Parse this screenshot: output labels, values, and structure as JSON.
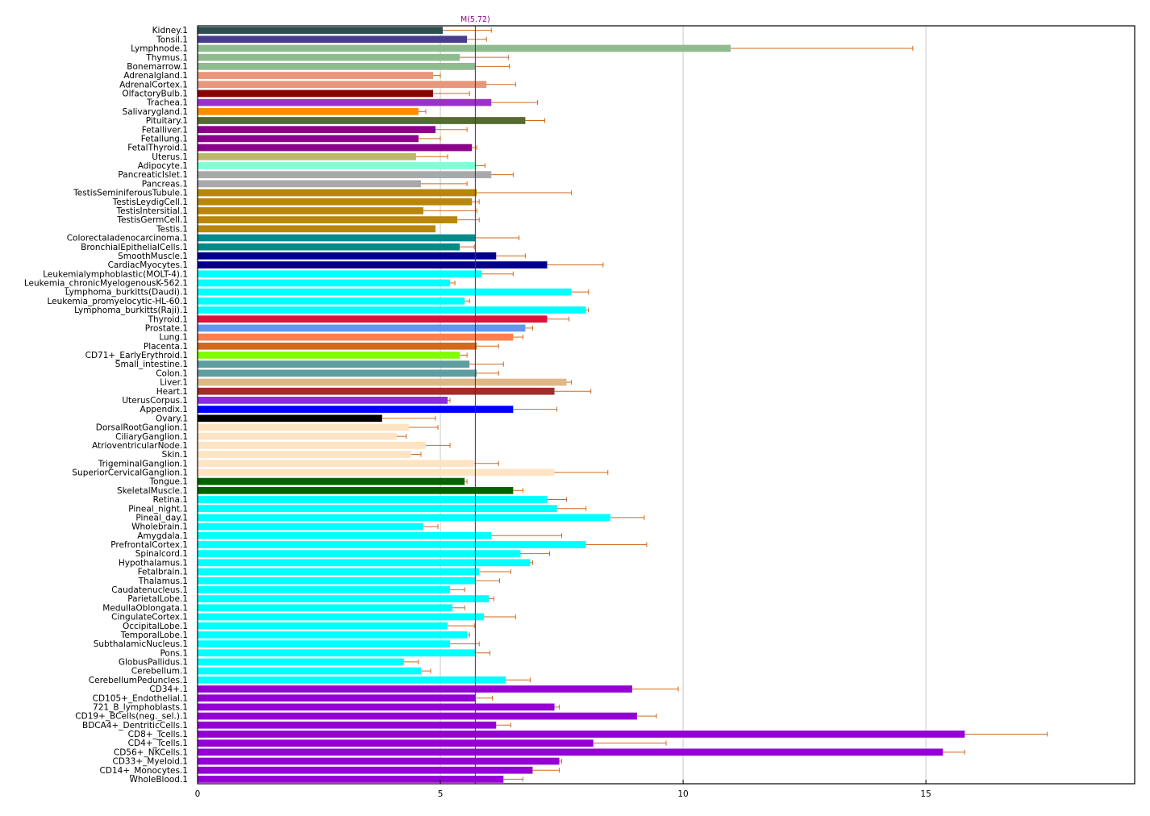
{
  "chart_data": {
    "type": "bar",
    "orientation": "horizontal",
    "title": "",
    "xlabel": "",
    "ylabel": "",
    "xlim": [
      0,
      19.3
    ],
    "xticks": [
      0,
      5,
      10,
      15
    ],
    "grid": "vertical",
    "marker": {
      "value": 5.72,
      "label": "M(5.72)",
      "color": "#8b008b"
    },
    "error_bar_color": "#d2691e",
    "categories": [
      "Kidney.1",
      "Tonsil.1",
      "Lymphnode.1",
      "Thymus.1",
      "Bonemarrow.1",
      "Adrenalgland.1",
      "AdrenalCortex.1",
      "OlfactoryBulb.1",
      "Trachea.1",
      "Salivarygland.1",
      "Pituitary.1",
      "Fetalliver.1",
      "Fetallung.1",
      "FetalThyroid.1",
      "Uterus.1",
      "Adipocyte.1",
      "PancreaticIslet.1",
      "Pancreas.1",
      "TestisSeminiferousTubule.1",
      "TestisLeydigCell.1",
      "TestisIntersitial.1",
      "TestisGermCell.1",
      "Testis.1",
      "Colorectaladenocarcinoma.1",
      "BronchialEpithelialCells.1",
      "SmoothMuscle.1",
      "CardiacMyocytes.1",
      "Leukemialymphoblastic(MOLT-4).1",
      "Leukemia_chronicMyelogenousK-562.1",
      "Lymphoma_burkitts(Daudi).1",
      "Leukemia_promyelocytic-HL-60.1",
      "Lymphoma_burkitts(Raji).1",
      "Thyroid.1",
      "Prostate.1",
      "Lung.1",
      "Placenta.1",
      "CD71+_EarlyErythroid.1",
      "Small_intestine.1",
      "Colon.1",
      "Liver.1",
      "Heart.1",
      "UterusCorpus.1",
      "Appendix.1",
      "Ovary.1",
      "DorsalRootGanglion.1",
      "CiliaryGanglion.1",
      "AtrioventricularNode.1",
      "Skin.1",
      "TrigeminalGanglion.1",
      "SuperiorCervicalGanglion.1",
      "Tongue.1",
      "SkeletalMuscle.1",
      "Retina.1",
      "Pineal_night.1",
      "Pineal_day.1",
      "Wholebrain.1",
      "Amygdala.1",
      "PrefrontalCortex.1",
      "Spinalcord.1",
      "Hypothalamus.1",
      "Fetalbrain.1",
      "Thalamus.1",
      "Caudatenucleus.1",
      "ParietalLobe.1",
      "MedullaOblongata.1",
      "CingulateCortex.1",
      "OccipitalLobe.1",
      "TemporalLobe.1",
      "SubthalamicNucleus.1",
      "Pons.1",
      "GlobusPallidus.1",
      "Cerebellum.1",
      "CerebellumPeduncles.1",
      "CD34+.1",
      "CD105+_Endothelial.1",
      "721_B_lymphoblasts.1",
      "CD19+_BCells(neg._sel.).1",
      "BDCA4+_DentriticCells.1",
      "CD8+_Tcells.1",
      "CD4+_Tcells.1",
      "CD56+_NKCells.1",
      "CD33+_Myeloid.1",
      "CD14+_Monocytes.1",
      "WholeBlood.1"
    ],
    "values": [
      5.05,
      5.55,
      10.98,
      5.4,
      5.72,
      4.85,
      5.95,
      4.85,
      6.05,
      4.55,
      6.75,
      4.9,
      4.55,
      5.65,
      4.5,
      5.72,
      6.05,
      4.6,
      5.75,
      5.65,
      4.65,
      5.35,
      4.9,
      5.72,
      5.4,
      6.15,
      7.2,
      5.85,
      5.2,
      7.7,
      5.5,
      8.0,
      7.2,
      6.75,
      6.5,
      5.75,
      5.4,
      5.6,
      5.75,
      7.6,
      7.35,
      5.15,
      6.5,
      3.8,
      4.35,
      4.1,
      4.7,
      4.4,
      5.7,
      7.35,
      5.5,
      6.5,
      7.2,
      7.4,
      8.5,
      4.65,
      6.05,
      8.0,
      6.65,
      6.85,
      5.8,
      5.72,
      5.2,
      6.0,
      5.25,
      5.9,
      5.15,
      5.55,
      5.2,
      5.72,
      4.25,
      4.6,
      6.35,
      8.95,
      5.72,
      7.35,
      9.05,
      6.15,
      15.8,
      8.15,
      15.35,
      7.45,
      6.9,
      6.3
    ],
    "errors": [
      1.0,
      0.4,
      3.75,
      1.0,
      0.7,
      0.15,
      0.6,
      0.75,
      0.95,
      0.15,
      0.4,
      0.65,
      0.45,
      0.1,
      0.65,
      0.2,
      0.45,
      0.95,
      1.95,
      0.15,
      1.1,
      0.45,
      0.0,
      0.9,
      0.3,
      0.6,
      1.15,
      0.65,
      0.1,
      0.35,
      0.1,
      0.05,
      0.45,
      0.15,
      0.2,
      0.45,
      0.15,
      0.7,
      0.45,
      0.1,
      0.75,
      0.05,
      0.9,
      1.1,
      0.6,
      0.2,
      0.5,
      0.2,
      0.5,
      1.1,
      0.05,
      0.2,
      0.4,
      0.6,
      0.7,
      0.3,
      1.45,
      1.25,
      0.6,
      0.05,
      0.65,
      0.5,
      0.3,
      0.1,
      0.25,
      0.65,
      0.55,
      0.05,
      0.6,
      0.3,
      0.3,
      0.2,
      0.5,
      0.95,
      0.35,
      0.1,
      0.4,
      0.3,
      1.7,
      1.5,
      0.45,
      0.05,
      0.55,
      0.4
    ],
    "colors": [
      "#2f4f4f",
      "#483d8b",
      "#8fbc8f",
      "#8fbc8f",
      "#8fbc8f",
      "#e9967a",
      "#e9967a",
      "#8b0000",
      "#9932cc",
      "#ff8c00",
      "#556b2f",
      "#8b008b",
      "#8b008b",
      "#8b008b",
      "#bdb76b",
      "#7fffd4",
      "#a9a9a9",
      "#a9a9a9",
      "#b8860b",
      "#b8860b",
      "#b8860b",
      "#b8860b",
      "#b8860b",
      "#008b8b",
      "#008b8b",
      "#00008b",
      "#00008b",
      "#00ffff",
      "#00ffff",
      "#00ffff",
      "#00ffff",
      "#00ffff",
      "#dc143c",
      "#6495ed",
      "#ff7f50",
      "#d2691e",
      "#7fff00",
      "#5f9ea0",
      "#5f9ea0",
      "#deb887",
      "#a52a2a",
      "#8a2be2",
      "#0000ff",
      "#000000",
      "#ffe4c4",
      "#ffe4c4",
      "#ffe4c4",
      "#ffe4c4",
      "#ffe4c4",
      "#ffe4c4",
      "#006400",
      "#006400",
      "#00ffff",
      "#00ffff",
      "#00ffff",
      "#00ffff",
      "#00ffff",
      "#00ffff",
      "#00ffff",
      "#00ffff",
      "#00ffff",
      "#00ffff",
      "#00ffff",
      "#00ffff",
      "#00ffff",
      "#00ffff",
      "#00ffff",
      "#00ffff",
      "#00ffff",
      "#00ffff",
      "#00ffff",
      "#00ffff",
      "#00ffff",
      "#9400d3",
      "#9400d3",
      "#9400d3",
      "#9400d3",
      "#9400d3",
      "#9400d3",
      "#9400d3",
      "#9400d3",
      "#9400d3",
      "#9400d3",
      "#9400d3"
    ]
  }
}
